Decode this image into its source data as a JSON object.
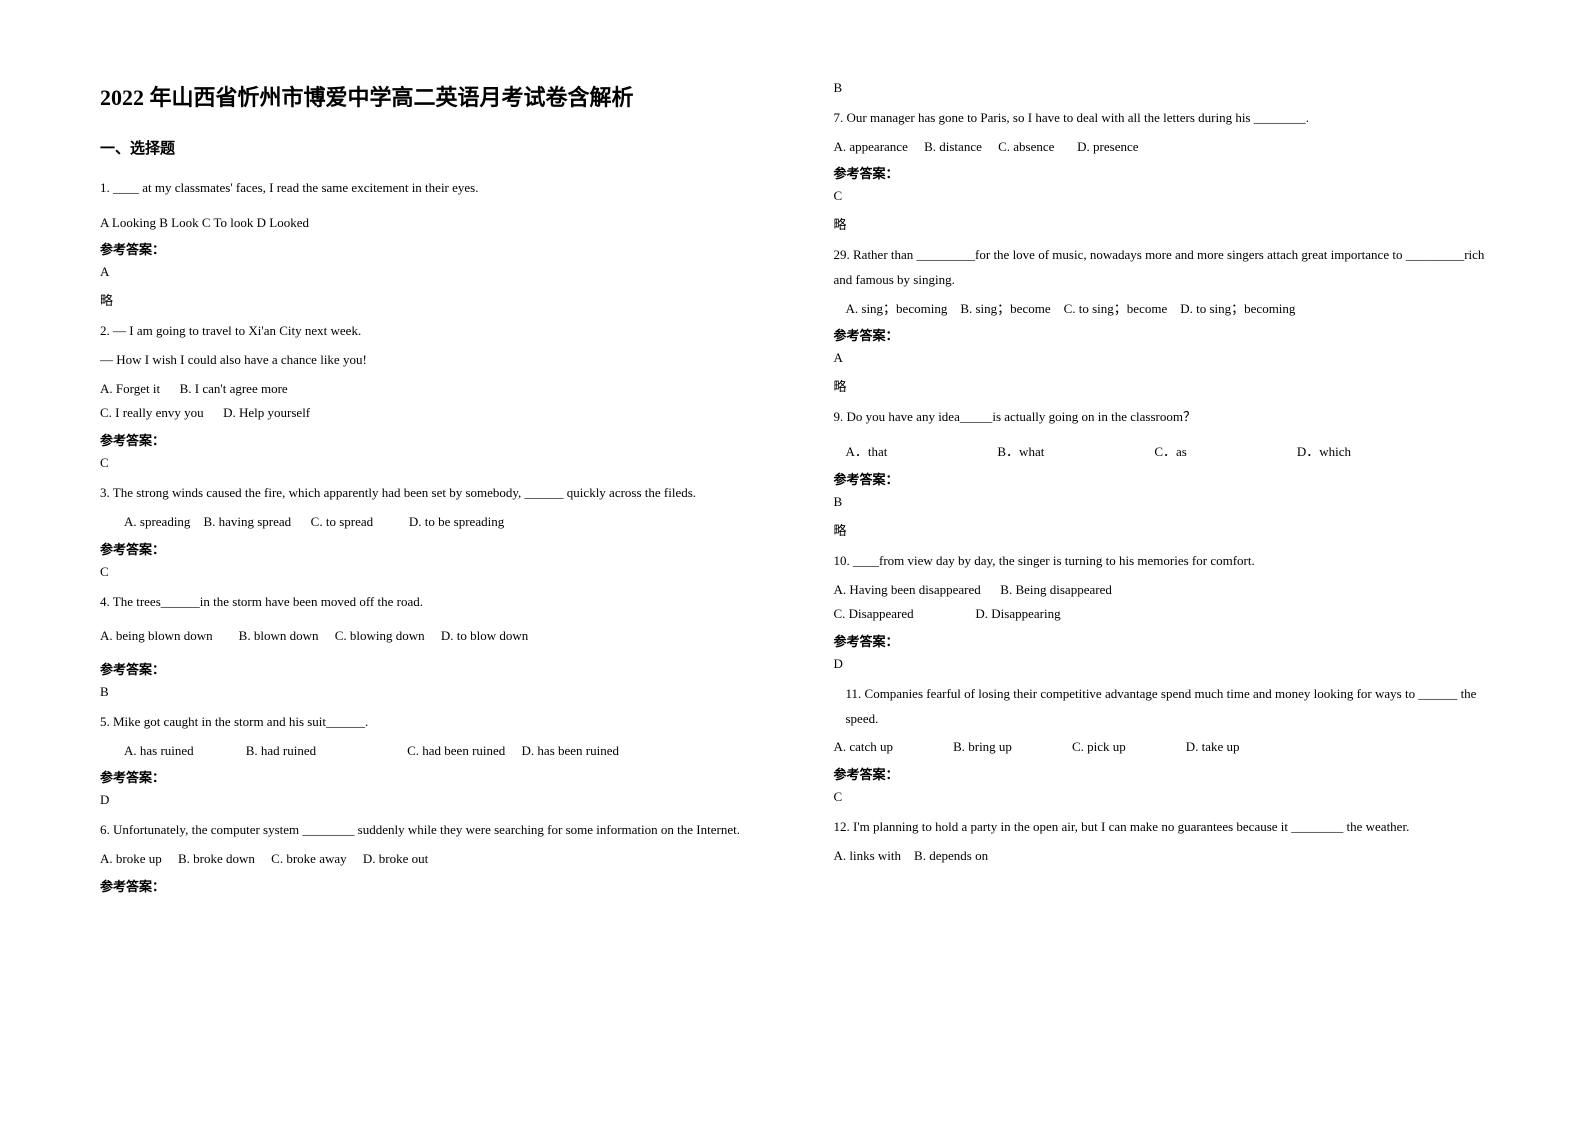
{
  "title": "2022 年山西省忻州市博爱中学高二英语月考试卷含解析",
  "section_header": "一、选择题",
  "answer_label": "参考答案：",
  "skip_text": "略",
  "left": {
    "q1": {
      "text": "1. ____ at my classmates' faces, I read the same excitement in their eyes.",
      "options": "A Looking  B Look  C To look  D Looked",
      "answer": "A"
    },
    "q2": {
      "line1": "2. — I am going to travel to Xi'an City next week.",
      "line2": "— How I wish I could also have a chance like you!",
      "opt_a": "A. Forget it",
      "opt_b": "B. I can't agree more",
      "opt_c": "C. I really envy you",
      "opt_d": "D. Help yourself",
      "answer": "C"
    },
    "q3": {
      "line1": "3. The strong winds caused the fire, which apparently had been set by somebody, ______ quickly across the fileds.",
      "opt_a": "A. spreading",
      "opt_b": "B. having spread",
      "opt_c": "C. to spread",
      "opt_d": "D. to be spreading",
      "answer": "C"
    },
    "q4": {
      "text": "4. The trees______in the storm have been moved off the road.",
      "opt_a": "A. being blown down",
      "opt_b": "B. blown down",
      "opt_c": "C. blowing down",
      "opt_d": "D. to blow down",
      "answer": "B"
    },
    "q5": {
      "text": "5. Mike got caught in the storm and his suit______.",
      "opt_a": "A. has ruined",
      "opt_b": "B. had ruined",
      "opt_c": "C. had been ruined",
      "opt_d": "D. has been ruined",
      "answer": "D"
    },
    "q6": {
      "text": "6. Unfortunately, the computer system ________ suddenly while they were searching for some information on the Internet.",
      "opt_a": "A. broke up",
      "opt_b": "B. broke down",
      "opt_c": "C. broke away",
      "opt_d": "D. broke out"
    }
  },
  "right": {
    "prev_answer": "B",
    "q7": {
      "text": "7. Our manager has gone to Paris, so I have to deal with all the letters during his ________.",
      "opt_a": "A. appearance",
      "opt_b": "B. distance",
      "opt_c": "C. absence",
      "opt_d": "D. presence",
      "answer": "C"
    },
    "q29": {
      "text": "29. Rather than _________for the love of music, nowadays more and more singers attach great importance to _________rich and famous by singing.",
      "opt_a": "A. sing；becoming",
      "opt_b": "B. sing；become",
      "opt_c": "C. to sing；become",
      "opt_d": "D. to sing；becoming",
      "answer": "A"
    },
    "q9": {
      "text": "9. Do you have any idea_____is actually going on in the classroom？",
      "opt_a": "A．that",
      "opt_b": "B．what",
      "opt_c": "C．as",
      "opt_d": "D．which",
      "answer": "B"
    },
    "q10": {
      "text": "10. ____from view day by day, the singer is turning to his memories for comfort.",
      "opt_a": "A. Having been disappeared",
      "opt_b": "B. Being disappeared",
      "opt_c": "C. Disappeared",
      "opt_d": "D. Disappearing",
      "answer": "D"
    },
    "q11": {
      "text": "11. Companies fearful of losing their competitive advantage spend much time and money looking for ways to ______ the speed.",
      "opt_a": "A. catch up",
      "opt_b": "B. bring up",
      "opt_c": "C. pick up",
      "opt_d": "D. take up",
      "answer": "C"
    },
    "q12": {
      "text": "12. I'm planning to hold a party in the open air, but I can make no guarantees because it ________ the weather.",
      "opt_a": "A. links with",
      "opt_b": "B. depends on"
    }
  }
}
